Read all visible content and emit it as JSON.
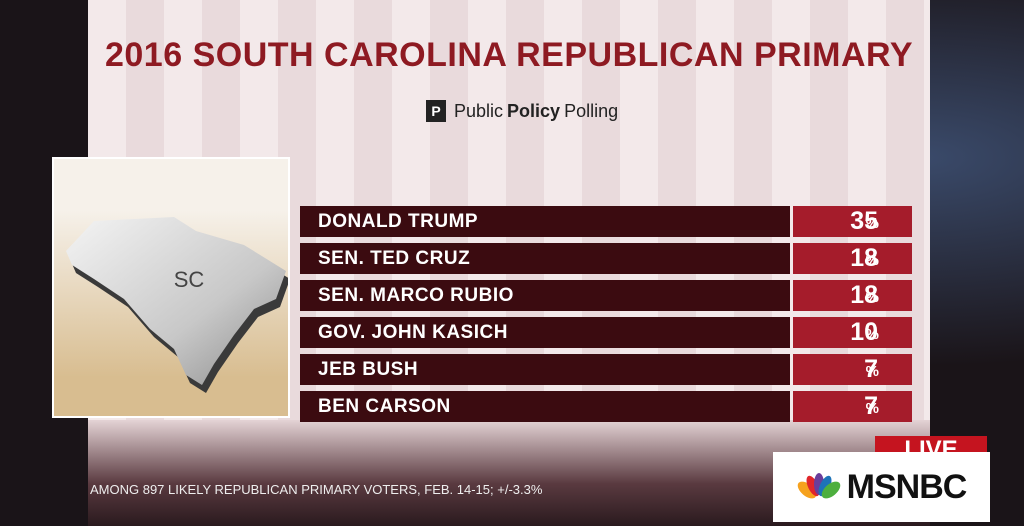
{
  "header": {
    "title": "2016 SOUTH CAROLINA REPUBLICAN PRIMARY",
    "source": {
      "light1": "Public",
      "bold": "Policy",
      "light2": "Polling"
    }
  },
  "map": {
    "label": "SC"
  },
  "results": {
    "unit": "%",
    "rows": [
      {
        "name": "DONALD TRUMP",
        "value": 35
      },
      {
        "name": "SEN. TED CRUZ",
        "value": 18
      },
      {
        "name": "SEN. MARCO RUBIO",
        "value": 18
      },
      {
        "name": "GOV. JOHN KASICH",
        "value": 10
      },
      {
        "name": "JEB BUSH",
        "value": 7
      },
      {
        "name": "BEN CARSON",
        "value": 7
      }
    ]
  },
  "footnote": "AMONG 897 LIKELY REPUBLICAN PRIMARY VOTERS, FEB. 14-15; +/-3.3%",
  "live": "LIVE",
  "network": "MSNBC"
}
